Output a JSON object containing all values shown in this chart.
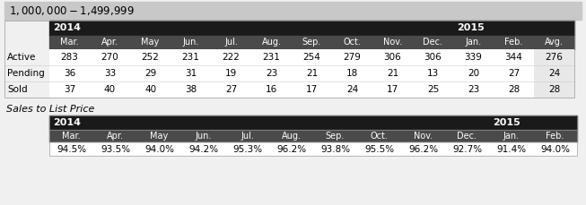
{
  "title": "$1,000,000 - $1,499,999",
  "title_bg": "#c8c8c8",
  "header_bg": "#1a1a1a",
  "white": "#ffffff",
  "light_gray": "#e8e8e8",
  "month_header_bg": "#4a4a4a",
  "black": "#000000",
  "outer_bg": "#f0f0f0",
  "months": [
    "Mar.",
    "Apr.",
    "May",
    "Jun.",
    "Jul.",
    "Aug.",
    "Sep.",
    "Oct.",
    "Nov.",
    "Dec.",
    "Jan.",
    "Feb.",
    "Avg."
  ],
  "months2": [
    "Mar.",
    "Apr.",
    "May",
    "Jun.",
    "Jul.",
    "Aug.",
    "Sep.",
    "Oct.",
    "Nov.",
    "Dec.",
    "Jan.",
    "Feb."
  ],
  "row_labels": [
    "Active",
    "Pending",
    "Sold"
  ],
  "active": [
    283,
    270,
    252,
    231,
    222,
    231,
    254,
    279,
    306,
    306,
    339,
    344,
    276
  ],
  "pending": [
    36,
    33,
    29,
    31,
    19,
    23,
    21,
    18,
    21,
    13,
    20,
    27,
    24
  ],
  "sold": [
    37,
    40,
    40,
    38,
    27,
    16,
    17,
    24,
    17,
    25,
    23,
    28,
    28
  ],
  "sales_to_list": [
    "94.5%",
    "93.5%",
    "94.0%",
    "94.2%",
    "95.3%",
    "96.2%",
    "93.8%",
    "95.5%",
    "96.2%",
    "92.7%",
    "91.4%",
    "94.0%"
  ],
  "section2_title": "Sales to List Price"
}
